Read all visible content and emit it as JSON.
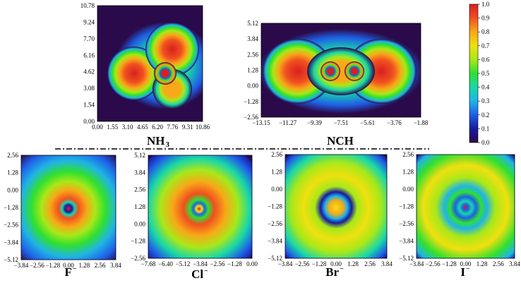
{
  "colorscale": {
    "stops": [
      "#2a0a4a",
      "#1a1aa0",
      "#1f5fe6",
      "#1fb4e6",
      "#18d8a8",
      "#30e030",
      "#a8e818",
      "#f0e010",
      "#f8a818",
      "#f05020",
      "#d82020"
    ],
    "ticks": [
      "1.0",
      "0.9",
      "0.8",
      "0.7",
      "0.6",
      "0.5",
      "0.4",
      "0.3",
      "0.2",
      "0.1",
      "0.0"
    ]
  },
  "divider": "dash-dot",
  "chart_data": [
    {
      "type": "heatmap",
      "title": "NH",
      "title_sub": "3",
      "xticks": [
        "0.00",
        "1.55",
        "3.10",
        "4.65",
        "6.20",
        "7.76",
        "9.31",
        "10.86"
      ],
      "yticks": [
        "10.78",
        "9.24",
        "7.70",
        "6.16",
        "4.62",
        "3.08",
        "1.54",
        "0.00"
      ],
      "xlim": [
        0.0,
        10.86
      ],
      "ylim": [
        0.0,
        10.78
      ],
      "colorscale_range": [
        0.0,
        1.0
      ]
    },
    {
      "type": "heatmap",
      "title": "NCH",
      "title_sub": "",
      "xticks": [
        "−13.15",
        "−11.27",
        "−9.39",
        "−7.51",
        "−5.61",
        "−3.76",
        "−1.88"
      ],
      "yticks": [
        "5.12",
        "3.84",
        "2.56",
        "1.28",
        "0.00",
        "−1.28",
        "−2.56"
      ],
      "xlim": [
        -13.15,
        -1.88
      ],
      "ylim": [
        -2.56,
        5.12
      ],
      "colorscale_range": [
        0.0,
        1.0
      ]
    },
    {
      "type": "heatmap",
      "title": "F",
      "title_sup": "−",
      "xticks": [
        "−3.84",
        "−2.56",
        "−1.28",
        "0.00",
        "1.28",
        "2.56",
        "3.84"
      ],
      "yticks": [
        "2.56",
        "1.28",
        "0.00",
        "−1.28",
        "−2.56",
        "−3.84",
        "−5.12"
      ],
      "xlim": [
        -3.84,
        3.84
      ],
      "ylim": [
        -5.12,
        2.56
      ],
      "colorscale_range": [
        0.0,
        1.0
      ]
    },
    {
      "type": "heatmap",
      "title": "Cl",
      "title_sup": "−",
      "xticks": [
        "−7.68",
        "−6.40",
        "−5.12",
        "−3.84",
        "−2.56",
        "−1.28",
        "0.00"
      ],
      "yticks": [
        "5.12",
        "3.84",
        "2.56",
        "1.28",
        "0.00",
        "−1.28",
        "−2.56"
      ],
      "xlim": [
        -7.68,
        0.0
      ],
      "ylim": [
        -2.56,
        5.12
      ],
      "colorscale_range": [
        0.0,
        1.0
      ]
    },
    {
      "type": "heatmap",
      "title": "Br",
      "title_sup": "−",
      "xticks": [
        "−3.84",
        "−2.56",
        "−1.28",
        "0.00",
        "1.28",
        "2.56",
        "3.84"
      ],
      "yticks": [
        "2.56",
        "1.28",
        "0.00",
        "−1.28",
        "−2.56",
        "−3.84",
        "−5.12"
      ],
      "xlim": [
        -3.84,
        3.84
      ],
      "ylim": [
        -5.12,
        2.56
      ],
      "colorscale_range": [
        0.0,
        1.0
      ]
    },
    {
      "type": "heatmap",
      "title": "I",
      "title_sup": "−",
      "xticks": [
        "−3.84",
        "−2.56",
        "−1.28",
        "0.00",
        "1.28",
        "2.56",
        "3.84"
      ],
      "yticks": [
        "2.56",
        "1.28",
        "0.00",
        "−1.28",
        "−2.56",
        "−3.84",
        "−5.12"
      ],
      "xlim": [
        -3.84,
        3.84
      ],
      "ylim": [
        -5.12,
        2.56
      ],
      "colorscale_range": [
        0.0,
        1.0
      ]
    }
  ]
}
